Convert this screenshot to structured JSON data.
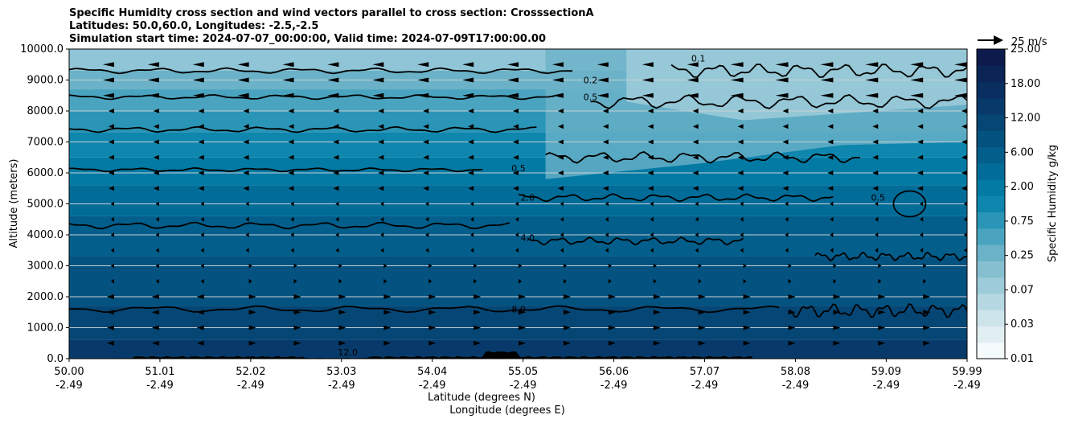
{
  "chart_data": {
    "type": "contour",
    "title_lines": [
      "Specific Humidity cross section and wind vectors parallel to cross section: CrosssectionA",
      "Latitudes: 50.0,60.0, Longitudes: -2.5,-2.5",
      "Simulation start time: 2024-07-07_00:00:00, Valid time: 2024-07-09T17:00:00.00"
    ],
    "ylabel": "Altitude (meters)",
    "xlabel_lat": "Latitude (degrees N)",
    "xlabel_lon": "Longitude (degrees E)",
    "ylim": [
      0,
      10000
    ],
    "y_ticks": [
      "0.0",
      "1000.0",
      "2000.0",
      "3000.0",
      "4000.0",
      "5000.0",
      "6000.0",
      "7000.0",
      "8000.0",
      "9000.0",
      "10000.0"
    ],
    "y_tick_values": [
      0,
      1000,
      2000,
      3000,
      4000,
      5000,
      6000,
      7000,
      8000,
      9000,
      10000
    ],
    "x_ticks_lat": [
      "50.00",
      "51.01",
      "52.02",
      "53.03",
      "54.04",
      "55.05",
      "56.06",
      "57.07",
      "58.08",
      "59.09",
      "59.99"
    ],
    "x_ticks_lon": [
      "-2.49",
      "-2.49",
      "-2.49",
      "-2.49",
      "-2.49",
      "-2.49",
      "-2.49",
      "-2.49",
      "-2.49",
      "-2.49",
      "-2.49"
    ],
    "colorbar": {
      "label": "Specific Humidity g/kg",
      "levels": [
        0.01,
        0.02,
        0.03,
        0.05,
        0.07,
        0.1,
        0.25,
        0.5,
        0.75,
        1.0,
        2.0,
        4.0,
        6.0,
        9.0,
        12.0,
        15.0,
        18.0,
        22.0,
        25.0
      ],
      "tick_labels": [
        "0.01",
        "0.03",
        "0.07",
        "0.25",
        "0.75",
        "2.00",
        "6.00",
        "12.00",
        "18.00",
        "25.00"
      ],
      "colors": [
        "#f5fafb",
        "#e1eff3",
        "#cde4eb",
        "#b6d8e3",
        "#9dcbd9",
        "#85bfd0",
        "#6bb2c8",
        "#4aa4c0",
        "#2a95b6",
        "#0e86ad",
        "#027aa4",
        "#026c98",
        "#035e8b",
        "#04527f",
        "#054675",
        "#073a6a",
        "#092e60",
        "#0b2456",
        "#0c1b4c"
      ]
    },
    "quiver_key_label": "25 m/s",
    "contour_levels": [
      {
        "label": "0.1",
        "z_m": 9650
      },
      {
        "label": "0.2",
        "z_m": 9150
      },
      {
        "label": "0.5",
        "z_m": 8400
      },
      {
        "label": "2.0",
        "z_m": 6100
      },
      {
        "label": "4.0",
        "z_m": 4300
      },
      {
        "label": "8.0",
        "z_m": 1600
      },
      {
        "label": "12.0",
        "z_m": 200
      }
    ],
    "wind_rows_m": [
      500,
      1000,
      1500,
      2000,
      2500,
      3000,
      3500,
      4000,
      4500,
      5000,
      5500,
      6000,
      6500,
      7000,
      7500,
      8000,
      8500,
      9000,
      9500
    ],
    "wind_cols_deg": [
      50.0,
      50.5,
      51.0,
      51.5,
      52.0,
      52.5,
      53.0,
      53.5,
      54.0,
      54.5,
      55.0,
      55.5,
      56.0,
      56.5,
      57.0,
      57.5,
      58.0,
      58.5,
      59.0,
      59.5,
      59.99
    ]
  }
}
